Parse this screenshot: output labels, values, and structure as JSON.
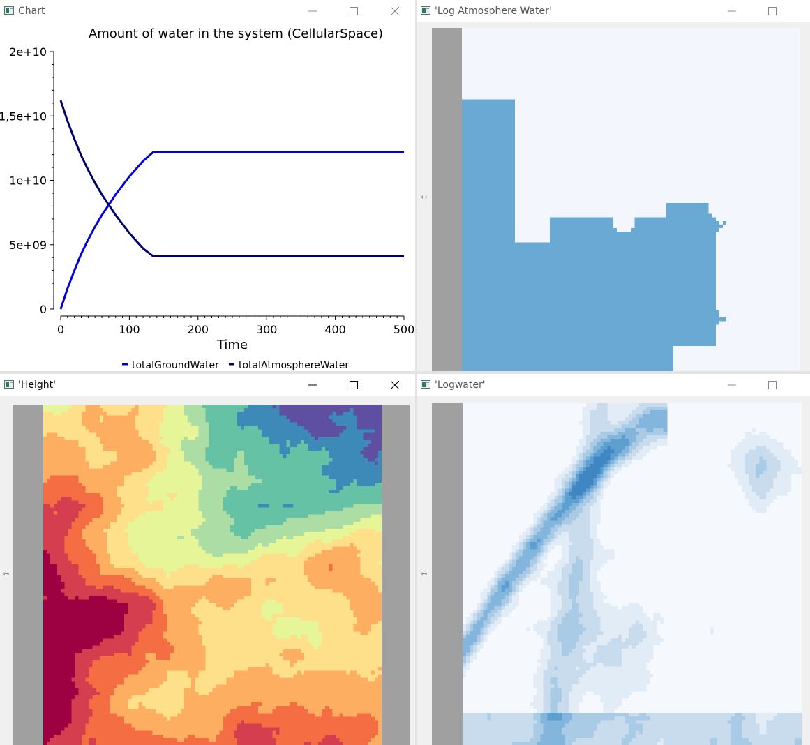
{
  "windows": {
    "chart": {
      "title": "Chart"
    },
    "log_atmosphere": {
      "title": "'Log Atmosphere Water'"
    },
    "height": {
      "title": "'Height'"
    },
    "logwater": {
      "title": "'Logwater'"
    }
  },
  "chart_data": {
    "type": "line",
    "title": "Amount of water in the system (CellularSpace)",
    "xlabel": "Time",
    "ylabel": "",
    "xlim": [
      0,
      500
    ],
    "ylim": [
      0,
      20000000000
    ],
    "x_ticks": [
      0,
      100,
      200,
      300,
      400,
      500
    ],
    "x_tick_labels": [
      "0",
      "100",
      "200",
      "300",
      "400",
      "500"
    ],
    "y_ticks": [
      0,
      5000000000,
      10000000000,
      15000000000,
      20000000000
    ],
    "y_tick_labels": [
      "0",
      "5e+09",
      "1e+10",
      "1,5e+10",
      "2e+10"
    ],
    "legend_position": "bottom",
    "series": [
      {
        "name": "totalGroundWater",
        "color": "#0000dd",
        "x": [
          0,
          10,
          20,
          30,
          40,
          50,
          60,
          70,
          80,
          90,
          100,
          110,
          120,
          135,
          200,
          300,
          400,
          500
        ],
        "y": [
          0,
          1600000000,
          3000000000,
          4300000000,
          5400000000,
          6400000000,
          7300000000,
          8100000000,
          8900000000,
          9600000000,
          10300000000,
          10900000000,
          11500000000,
          12200000000,
          12200000000,
          12200000000,
          12200000000,
          12200000000
        ]
      },
      {
        "name": "totalAtmosphereWater",
        "color": "#000070",
        "x": [
          0,
          10,
          20,
          30,
          40,
          50,
          60,
          70,
          80,
          90,
          100,
          110,
          120,
          135,
          200,
          300,
          400,
          500
        ],
        "y": [
          16200000000,
          14600000000,
          13200000000,
          11900000000,
          10800000000,
          9800000000,
          8900000000,
          8100000000,
          7300000000,
          6600000000,
          5900000000,
          5300000000,
          4700000000,
          4100000000,
          4100000000,
          4100000000,
          4100000000,
          4100000000
        ]
      }
    ]
  },
  "colors": {
    "map_gray": "#a0a0a0",
    "atmosphere_water": "#6aa9d4",
    "atmosphere_bg": "#f3f7fd",
    "height_palette": [
      "#5e4fa2",
      "#3d89b8",
      "#66c2a5",
      "#abdda4",
      "#e6f598",
      "#fee08b",
      "#fdae61",
      "#f46d43",
      "#d53e4f",
      "#9e0142"
    ],
    "logwater_palette": [
      "#f5f9fe",
      "#e2ecf7",
      "#c8dcee",
      "#a9cbe5",
      "#84b5dc",
      "#5e9fd1",
      "#3f86c3"
    ]
  },
  "icons": [
    "window-app-icon",
    "minimize-icon",
    "maximize-icon",
    "close-icon",
    "splitter-handle-icon"
  ]
}
